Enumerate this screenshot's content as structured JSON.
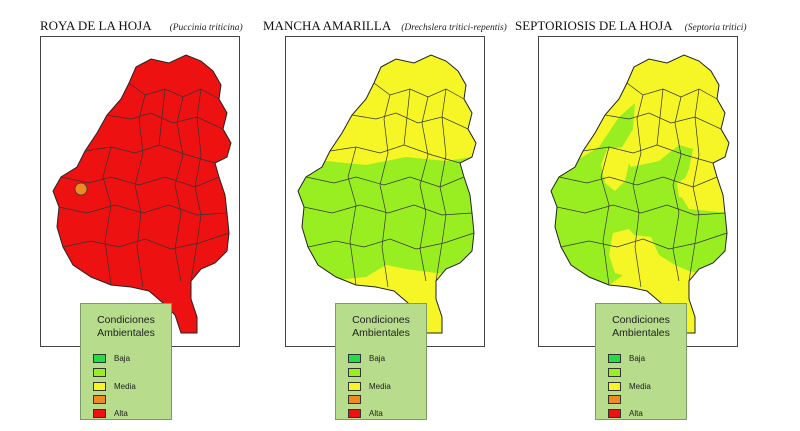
{
  "colors": {
    "baja": "#22dd44",
    "verde": "#99ee22",
    "media": "#f6f626",
    "naranja": "#ee8a22",
    "alta": "#ee1111",
    "legend_bg": "#b6dc8c"
  },
  "legend": {
    "title_line1": "Condiciones",
    "title_line2": "Ambientales",
    "items": [
      {
        "label": "Baja",
        "color": "#22dd44"
      },
      {
        "label": "",
        "color": "#99ee22"
      },
      {
        "label": "Media",
        "color": "#f6f626"
      },
      {
        "label": "",
        "color": "#ee8a22"
      },
      {
        "label": "Alta",
        "color": "#ee1111"
      }
    ]
  },
  "panels": [
    {
      "title": "ROYA DE LA HOJA",
      "scientific_name": "(Puccinia triticina)"
    },
    {
      "title": "MANCHA AMARILLA",
      "scientific_name": "(Drechslera tritici-repentis)"
    },
    {
      "title": "SEPTORIOSIS DE LA HOJA",
      "scientific_name": "(Septoria tritici)"
    }
  ]
}
